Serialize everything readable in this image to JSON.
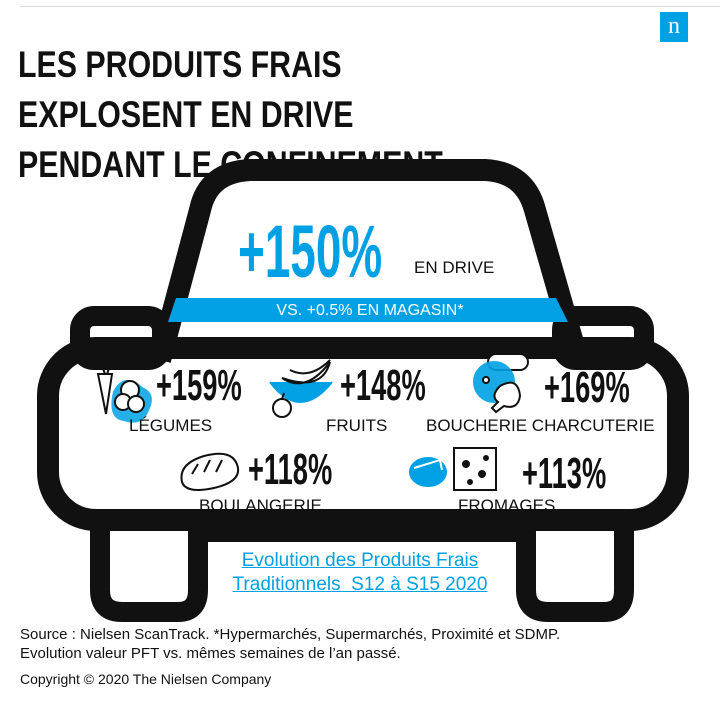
{
  "brand": {
    "logo_letter": "n",
    "accent_color": "#00a1e4"
  },
  "title": {
    "line1": "LES PRODUITS FRAIS EXPLOSENT EN DRIVE",
    "line2": "PENDANT LE CONFINEMENT"
  },
  "headline": {
    "value": "+150%",
    "label": "EN DRIVE",
    "comparison": "VS. +0.5% EN MAGASIN*"
  },
  "categories": [
    {
      "value": "+159%",
      "label": "LÉGUMES",
      "icon": "vegetables-icon"
    },
    {
      "value": "+148%",
      "label": "FRUITS",
      "icon": "fruits-icon"
    },
    {
      "value": "+169%",
      "label": "BOUCHERIE CHARCUTERIE",
      "icon": "meat-icon"
    },
    {
      "value": "+118%",
      "label": "BOULANGERIE",
      "icon": "bread-icon"
    },
    {
      "value": "+113%",
      "label": "FROMAGES",
      "icon": "cheese-icon"
    }
  ],
  "link": {
    "line1": "Evolution des Produits Frais",
    "line2": "Traditionnels  S12 à S15 2020"
  },
  "footer": {
    "source_line1": "Source : Nielsen ScanTrack. *Hypermarchés, Supermarchés, Proximité et SDMP.",
    "source_line2": "Evolution valeur PFT vs. mêmes semaines de l’an passé.",
    "copyright": "Copyright © 2020 The Nielsen Company"
  }
}
